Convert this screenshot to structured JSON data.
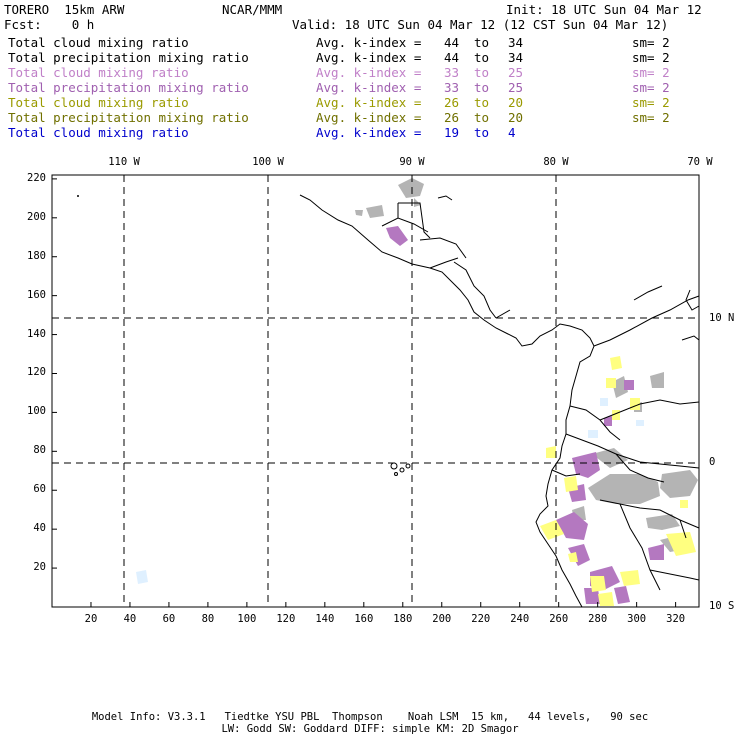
{
  "header": {
    "model": "TORERO  15km ARW",
    "org": "NCAR/MMM",
    "init": "Init: 18 UTC Sun 04 Mar 12",
    "fcst": "Fcst:    0 h",
    "valid": "Valid: 18 UTC Sun 04 Mar 12 (12 CST Sun 04 Mar 12)"
  },
  "legend": [
    {
      "field": "Total cloud mixing ratio",
      "kindex": "Avg. k-index = ",
      "lo": "44",
      "to": "to",
      "hi": "34",
      "sm": "sm= 2",
      "color": "#000000"
    },
    {
      "field": "Total precipitation mixing ratio",
      "kindex": "Avg. k-index = ",
      "lo": "44",
      "to": "to",
      "hi": "34",
      "sm": "sm= 2",
      "color": "#000000"
    },
    {
      "field": "Total cloud mixing ratio",
      "kindex": "Avg. k-index = ",
      "lo": "33",
      "to": "to",
      "hi": "25",
      "sm": "sm= 2",
      "color": "#c080c8"
    },
    {
      "field": "Total precipitation mixing ratio",
      "kindex": "Avg. k-index = ",
      "lo": "33",
      "to": "to",
      "hi": "25",
      "sm": "sm= 2",
      "color": "#a060b0"
    },
    {
      "field": "Total cloud mixing ratio",
      "kindex": "Avg. k-index = ",
      "lo": "26",
      "to": "to",
      "hi": "20",
      "sm": "sm= 2",
      "color": "#9a9a00"
    },
    {
      "field": "Total precipitation mixing ratio",
      "kindex": "Avg. k-index = ",
      "lo": "26",
      "to": "to",
      "hi": "20",
      "sm": "sm= 2",
      "color": "#707000"
    },
    {
      "field": "Total cloud mixing ratio",
      "kindex": "Avg. k-index = ",
      "lo": "19",
      "to": "to",
      "hi": "4",
      "sm": "",
      "color": "#0000cc"
    }
  ],
  "map": {
    "lon_labels": [
      "110 W",
      "100 W",
      "90 W",
      "80 W",
      "70 W"
    ],
    "lat_labels": [
      "10 N",
      "0",
      "10 S"
    ],
    "x_ticks": [
      "20",
      "40",
      "60",
      "80",
      "100",
      "120",
      "140",
      "160",
      "180",
      "200",
      "220",
      "240",
      "260",
      "280",
      "300",
      "320"
    ],
    "y_ticks": [
      "220",
      "200",
      "180",
      "160",
      "140",
      "120",
      "100",
      "80",
      "60",
      "40",
      "20"
    ],
    "fill_colors": {
      "gray": "#b4b4b4",
      "purple": "#b478c0",
      "yellow": "#ffff80",
      "light_blue": "#dff0ff"
    }
  },
  "footer": {
    "line1": "Model Info: V3.3.1   Tiedtke YSU PBL  Thompson    Noah LSM  15 km,   44 levels,   90 sec",
    "line2": "LW: Godd SW: Goddard DIFF: simple KM: 2D Smagor"
  }
}
